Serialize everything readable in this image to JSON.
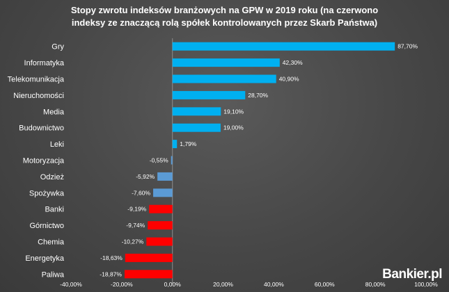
{
  "chart_data": {
    "type": "bar",
    "orientation": "horizontal",
    "title": "Stopy zwrotu indeksów branżowych na GPW w 2019 roku (na czerwono indeksy ze znaczącą rolą spółek kontrolowanych przez Skarb Państwa)",
    "title_lines": [
      "Stopy zwrotu indeksów branżowych na GPW w 2019 roku (na czerwono",
      "indeksy ze znaczącą rolą spółek kontrolowanych przez Skarb Państwa)"
    ],
    "categories": [
      "Gry",
      "Informatyka",
      "Telekomunikacja",
      "Nieruchomości",
      "Media",
      "Budownictwo",
      "Leki",
      "Motoryzacja",
      "Odzież",
      "Spożywka",
      "Banki",
      "Górnictwo",
      "Chemia",
      "Energetyka",
      "Paliwa"
    ],
    "values": [
      87.7,
      42.3,
      40.9,
      28.7,
      19.1,
      19.0,
      1.79,
      -0.55,
      -5.92,
      -7.6,
      -9.19,
      -9.74,
      -10.27,
      -18.63,
      -18.87
    ],
    "value_labels": [
      "87,70%",
      "42,30%",
      "40,90%",
      "28,70%",
      "19,10%",
      "19,00%",
      "1,79%",
      "-0,55%",
      "-5,92%",
      "-7,60%",
      "-9,19%",
      "-9,74%",
      "-10,27%",
      "-18,63%",
      "-18,87%"
    ],
    "state_controlled": [
      false,
      false,
      false,
      false,
      false,
      false,
      false,
      false,
      false,
      false,
      true,
      true,
      true,
      true,
      true
    ],
    "xlim": [
      -40,
      100
    ],
    "x_ticks": [
      -40,
      -20,
      0,
      20,
      40,
      60,
      80,
      100
    ],
    "x_tick_labels": [
      "-40,00%",
      "-20,00%",
      "0,00%",
      "20,00%",
      "40,00%",
      "60,00%",
      "80,00%",
      "100,00%"
    ],
    "grid": false,
    "legend": "none",
    "colors": {
      "positive": "#00b0f0",
      "negative": "#5b9bd5",
      "state_controlled": "#ff0000"
    }
  },
  "branding": {
    "logo": "Bankier.pl"
  }
}
